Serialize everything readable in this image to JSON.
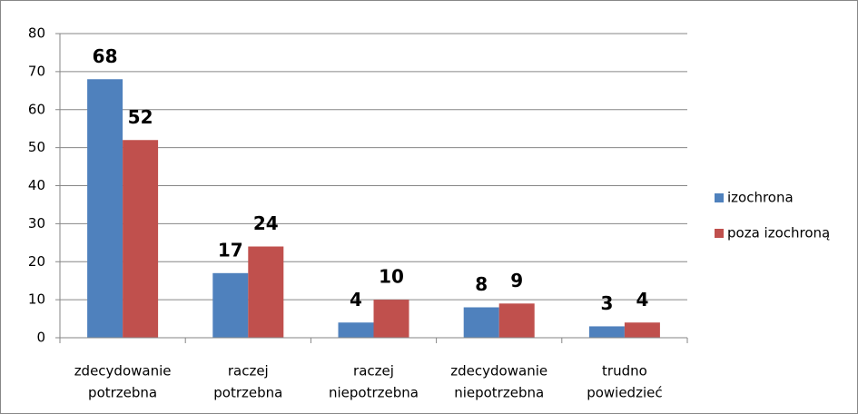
{
  "chart_data": {
    "type": "bar",
    "categories": [
      [
        "zdecydowanie",
        "potrzebna"
      ],
      [
        "raczej",
        "potrzebna"
      ],
      [
        "raczej",
        "niepotrzebna"
      ],
      [
        "zdecydowanie",
        "niepotrzebna"
      ],
      [
        "trudno",
        "powiedzieć"
      ]
    ],
    "series": [
      {
        "name": "izochrona",
        "color": "#4f81bd",
        "values": [
          68,
          17,
          4,
          8,
          3
        ]
      },
      {
        "name": "poza izochroną",
        "color": "#c0504d",
        "values": [
          52,
          24,
          10,
          9,
          4
        ]
      }
    ],
    "ylim": [
      0,
      80
    ],
    "yticks": [
      0,
      10,
      20,
      30,
      40,
      50,
      60,
      70,
      80
    ],
    "grid": true,
    "legend": "right"
  }
}
